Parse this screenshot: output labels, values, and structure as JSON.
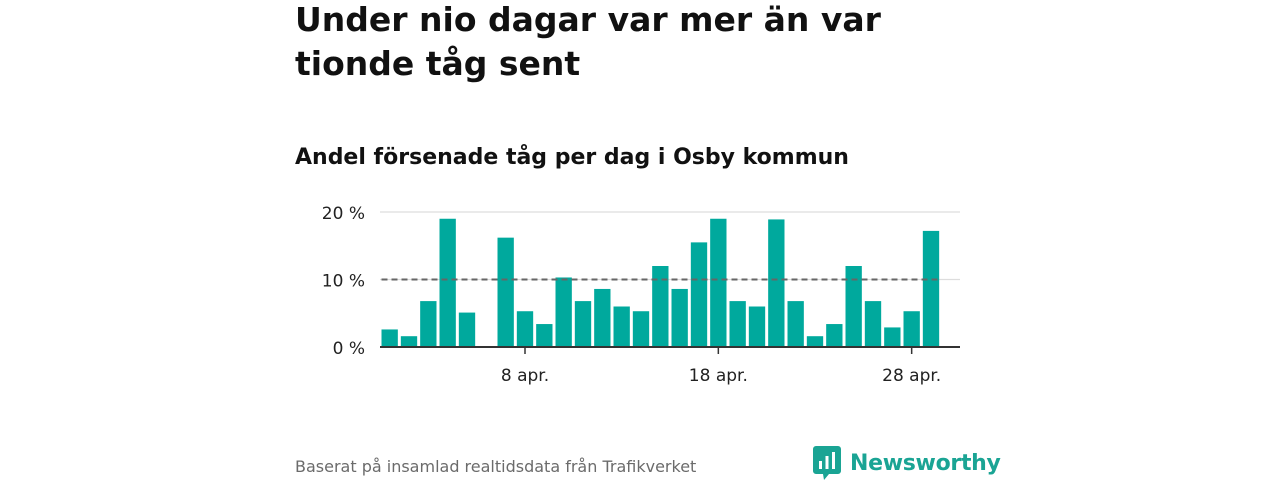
{
  "headline": "Under nio dagar var mer än var tionde tåg sent",
  "subtitle": "Andel försenade tåg per dag i Osby kommun",
  "footer": {
    "source": "Baserat på insamlad realtidsdata från Trafikverket",
    "brand": "Newsworthy"
  },
  "colors": {
    "bar": "#00a99d",
    "reference_line": "#666666",
    "grid": "#dddddd",
    "axis": "#333333",
    "brand": "#1aa494"
  },
  "icons": {
    "brand_logo": "newsworthy-logo-icon"
  },
  "chart_data": {
    "type": "bar",
    "x": [
      1,
      2,
      3,
      4,
      5,
      6,
      7,
      8,
      9,
      10,
      11,
      12,
      13,
      14,
      15,
      16,
      17,
      18,
      19,
      20,
      21,
      22,
      23,
      24,
      25,
      26,
      27,
      28,
      29,
      30
    ],
    "values": [
      2.6,
      1.6,
      6.8,
      19.0,
      5.1,
      0,
      16.2,
      5.3,
      3.4,
      10.3,
      6.8,
      8.6,
      6.0,
      5.3,
      12.0,
      8.6,
      15.5,
      19.0,
      6.8,
      6.0,
      18.9,
      6.8,
      1.6,
      3.4,
      12.0,
      6.8,
      2.9,
      5.3,
      17.2,
      0
    ],
    "y_ticks": [
      {
        "value": 0,
        "label": "0 %"
      },
      {
        "value": 10,
        "label": "10 %"
      },
      {
        "value": 20,
        "label": "20 %"
      }
    ],
    "x_ticks": [
      {
        "value": 8,
        "label": "8 apr."
      },
      {
        "value": 18,
        "label": "18 apr."
      },
      {
        "value": 28,
        "label": "28 apr."
      }
    ],
    "ylim": [
      0,
      20
    ],
    "xlim": [
      0.5,
      30.5
    ],
    "reference_line": {
      "value": 10,
      "style": "dashed"
    },
    "grid": "horizontal",
    "title": "",
    "xlabel": "",
    "ylabel": ""
  }
}
